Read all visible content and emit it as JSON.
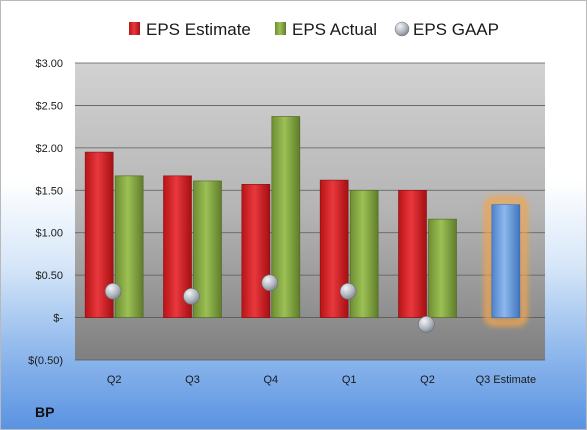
{
  "company": "BP",
  "chart_data": {
    "type": "bar",
    "categories": [
      "Q2",
      "Q3",
      "Q4",
      "Q1",
      "Q2",
      "Q3 Estimate"
    ],
    "series": [
      {
        "name": "EPS Estimate",
        "type": "bar",
        "color": "#d9262b",
        "values": [
          1.95,
          1.67,
          1.57,
          1.62,
          1.5,
          null
        ]
      },
      {
        "name": "EPS Actual",
        "type": "bar",
        "color": "#8cad48",
        "values": [
          1.67,
          1.61,
          2.37,
          1.5,
          1.16,
          null
        ]
      },
      {
        "name": "EPS GAAP",
        "type": "scatter",
        "color": "#b3b8c0",
        "values": [
          0.31,
          0.25,
          0.41,
          0.31,
          -0.08,
          null
        ]
      },
      {
        "name": "Q3 Estimate",
        "type": "bar",
        "color": "#6b9fe0",
        "highlight": "#f5a54a",
        "values": [
          null,
          null,
          null,
          null,
          null,
          1.33
        ]
      }
    ],
    "ylim": [
      -0.5,
      3.0
    ],
    "yticks": [
      3.0,
      2.5,
      2.0,
      1.5,
      1.0,
      0.5,
      0,
      -0.5
    ],
    "ytick_labels": [
      "$3.00",
      "$2.50",
      "$2.00",
      "$1.50",
      "$1.00",
      "$0.50",
      "$-",
      "$(0.50)"
    ],
    "legend": [
      "EPS Estimate",
      "EPS Actual",
      "EPS GAAP"
    ],
    "legend_position": "top",
    "grid": true
  }
}
